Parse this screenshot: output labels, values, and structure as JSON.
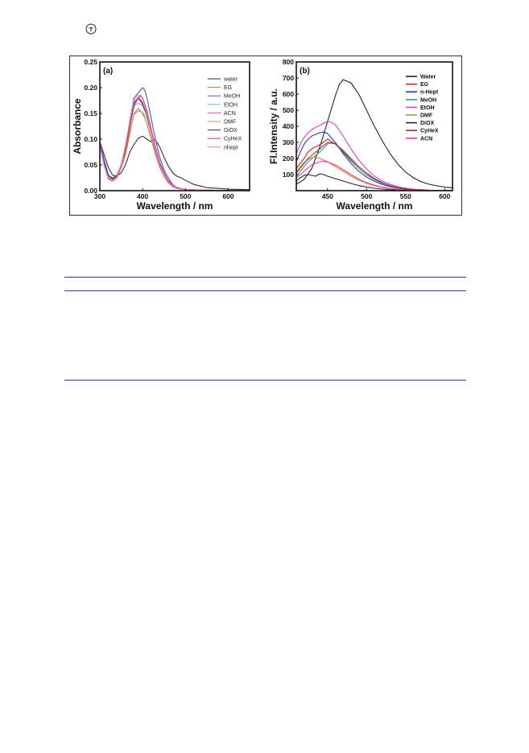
{
  "logo": "elsevier-tree-logo",
  "colors": {
    "rule": "#2b3b8f"
  },
  "chart_data": [
    {
      "type": "line",
      "panel_label": "(a)",
      "xlabel": "Wavelength / nm",
      "ylabel": "Absorbance",
      "xlim": [
        300,
        650
      ],
      "ylim": [
        0,
        0.25
      ],
      "xticks": [
        "300",
        "400",
        "500",
        "600"
      ],
      "yticks": [
        "0.00",
        "0.05",
        "0.10",
        "0.15",
        "0.20",
        "0.25"
      ],
      "legend_position": "top-right",
      "series": [
        {
          "name": "water",
          "color": "#333333",
          "x": [
            300,
            310,
            320,
            330,
            340,
            350,
            360,
            370,
            380,
            390,
            400,
            410,
            420,
            425,
            430,
            440,
            450,
            460,
            470,
            480,
            490,
            500,
            520,
            550,
            600,
            650
          ],
          "y": [
            0.095,
            0.07,
            0.045,
            0.03,
            0.028,
            0.035,
            0.05,
            0.075,
            0.09,
            0.102,
            0.106,
            0.1,
            0.095,
            0.1,
            0.098,
            0.085,
            0.065,
            0.048,
            0.035,
            0.028,
            0.025,
            0.02,
            0.012,
            0.006,
            0.003,
            0.002
          ]
        },
        {
          "name": "EG",
          "color": "#d07070",
          "x": [
            300,
            310,
            320,
            330,
            340,
            350,
            360,
            370,
            380,
            390,
            395,
            400,
            410,
            420,
            430,
            440,
            450,
            460,
            470,
            480,
            500,
            550,
            650
          ],
          "y": [
            0.09,
            0.05,
            0.025,
            0.02,
            0.028,
            0.045,
            0.07,
            0.11,
            0.15,
            0.16,
            0.155,
            0.15,
            0.13,
            0.1,
            0.07,
            0.045,
            0.028,
            0.015,
            0.008,
            0.004,
            0.002,
            0.001,
            0.0
          ]
        },
        {
          "name": "MeOH",
          "color": "#3a5bd9",
          "x": [
            300,
            310,
            320,
            330,
            340,
            350,
            360,
            370,
            380,
            390,
            400,
            405,
            410,
            420,
            430,
            440,
            450,
            460,
            470,
            480,
            500,
            550,
            650
          ],
          "y": [
            0.095,
            0.06,
            0.03,
            0.022,
            0.028,
            0.05,
            0.085,
            0.135,
            0.18,
            0.19,
            0.2,
            0.195,
            0.18,
            0.14,
            0.1,
            0.065,
            0.04,
            0.025,
            0.012,
            0.005,
            0.002,
            0.001,
            0.0
          ]
        },
        {
          "name": "EtOH",
          "color": "#5fb8c8",
          "x": [
            300,
            310,
            320,
            330,
            340,
            350,
            360,
            370,
            380,
            390,
            400,
            410,
            420,
            430,
            440,
            450,
            460,
            470,
            480,
            500,
            550,
            650
          ],
          "y": [
            0.09,
            0.055,
            0.028,
            0.02,
            0.026,
            0.045,
            0.08,
            0.125,
            0.165,
            0.17,
            0.165,
            0.145,
            0.11,
            0.075,
            0.048,
            0.03,
            0.018,
            0.01,
            0.005,
            0.002,
            0.001,
            0.0
          ]
        },
        {
          "name": "ACN",
          "color": "#e040c0",
          "x": [
            300,
            310,
            320,
            330,
            340,
            350,
            360,
            370,
            380,
            390,
            400,
            410,
            420,
            430,
            440,
            450,
            460,
            470,
            480,
            500,
            550,
            650
          ],
          "y": [
            0.088,
            0.05,
            0.025,
            0.02,
            0.027,
            0.05,
            0.085,
            0.13,
            0.17,
            0.18,
            0.17,
            0.15,
            0.115,
            0.08,
            0.05,
            0.032,
            0.018,
            0.01,
            0.005,
            0.002,
            0.001,
            0.0
          ]
        },
        {
          "name": "DMF",
          "color": "#b0a050",
          "x": [
            300,
            310,
            320,
            330,
            340,
            350,
            360,
            370,
            380,
            390,
            400,
            410,
            420,
            430,
            440,
            450,
            460,
            470,
            480,
            500,
            550,
            650
          ],
          "y": [
            0.09,
            0.05,
            0.022,
            0.018,
            0.025,
            0.045,
            0.075,
            0.115,
            0.148,
            0.155,
            0.152,
            0.14,
            0.11,
            0.075,
            0.048,
            0.03,
            0.018,
            0.01,
            0.005,
            0.002,
            0.001,
            0.0
          ]
        },
        {
          "name": "DiOX",
          "color": "#2a2a60",
          "x": [
            300,
            310,
            320,
            330,
            340,
            350,
            360,
            370,
            380,
            390,
            400,
            410,
            420,
            430,
            440,
            450,
            460,
            470,
            480,
            500,
            550,
            650
          ],
          "y": [
            0.09,
            0.055,
            0.03,
            0.024,
            0.03,
            0.05,
            0.085,
            0.13,
            0.17,
            0.18,
            0.168,
            0.148,
            0.115,
            0.08,
            0.052,
            0.033,
            0.02,
            0.011,
            0.006,
            0.002,
            0.001,
            0.0
          ]
        },
        {
          "name": "CyHeX",
          "color": "#c04040",
          "x": [
            300,
            310,
            320,
            330,
            340,
            350,
            360,
            370,
            380,
            390,
            395,
            400,
            410,
            420,
            430,
            440,
            450,
            460,
            470,
            480,
            500,
            550,
            650
          ],
          "y": [
            0.09,
            0.05,
            0.024,
            0.02,
            0.027,
            0.048,
            0.08,
            0.125,
            0.165,
            0.18,
            0.185,
            0.18,
            0.155,
            0.12,
            0.085,
            0.055,
            0.035,
            0.02,
            0.011,
            0.005,
            0.002,
            0.001,
            0.0
          ]
        },
        {
          "name": "nhept",
          "color": "#ff70c0",
          "x": [
            300,
            310,
            320,
            330,
            340,
            350,
            360,
            370,
            380,
            390,
            400,
            410,
            420,
            430,
            440,
            450,
            460,
            470,
            480,
            500,
            550,
            650
          ],
          "y": [
            0.088,
            0.05,
            0.025,
            0.02,
            0.028,
            0.05,
            0.088,
            0.135,
            0.175,
            0.185,
            0.172,
            0.15,
            0.115,
            0.08,
            0.05,
            0.032,
            0.018,
            0.01,
            0.005,
            0.002,
            0.001,
            0.0
          ]
        }
      ]
    },
    {
      "type": "line",
      "panel_label": "(b)",
      "xlabel": "Wavelength / nm",
      "ylabel": "Fl.Intensity / a.u.",
      "xlim": [
        410,
        610
      ],
      "ylim": [
        0,
        800
      ],
      "xticks": [
        "450",
        "500",
        "550",
        "600"
      ],
      "yticks": [
        "100",
        "200",
        "300",
        "400",
        "500",
        "600",
        "700",
        "800"
      ],
      "legend_position": "top-right",
      "series": [
        {
          "name": "Water",
          "color": "#222222",
          "x": [
            410,
            420,
            430,
            440,
            450,
            460,
            465,
            470,
            480,
            490,
            500,
            510,
            520,
            530,
            540,
            550,
            560,
            570,
            580,
            590,
            600,
            610
          ],
          "y": [
            40,
            70,
            140,
            270,
            430,
            590,
            660,
            690,
            670,
            600,
            500,
            400,
            310,
            230,
            165,
            115,
            80,
            55,
            40,
            30,
            22,
            18
          ]
        },
        {
          "name": "EG",
          "color": "#cc2222",
          "x": [
            410,
            415,
            420,
            425,
            430,
            440,
            450,
            460,
            470,
            480,
            490,
            500,
            510,
            520,
            530,
            540,
            550,
            560,
            580,
            610
          ],
          "y": [
            140,
            170,
            200,
            240,
            260,
            285,
            320,
            290,
            240,
            185,
            140,
            100,
            70,
            48,
            32,
            20,
            12,
            8,
            3,
            1
          ]
        },
        {
          "name": "n-Hept",
          "color": "#2a3fb0",
          "x": [
            410,
            415,
            420,
            425,
            430,
            440,
            445,
            450,
            460,
            470,
            480,
            490,
            500,
            510,
            520,
            530,
            540,
            550,
            560,
            580,
            610
          ],
          "y": [
            180,
            240,
            290,
            320,
            340,
            360,
            365,
            355,
            300,
            230,
            170,
            120,
            85,
            58,
            38,
            25,
            15,
            9,
            5,
            2,
            1
          ]
        },
        {
          "name": "MeOH",
          "color": "#2a9a9a",
          "x": [
            410,
            415,
            420,
            425,
            430,
            440,
            450,
            455,
            460,
            470,
            480,
            490,
            500,
            510,
            520,
            530,
            540,
            550,
            560,
            580,
            610
          ],
          "y": [
            90,
            120,
            150,
            180,
            200,
            240,
            290,
            300,
            290,
            245,
            190,
            140,
            100,
            68,
            45,
            30,
            18,
            11,
            6,
            2,
            1
          ]
        },
        {
          "name": "EtOH",
          "color": "#d040e0",
          "x": [
            410,
            415,
            420,
            425,
            430,
            435,
            440,
            445,
            450,
            455,
            460,
            470,
            480,
            490,
            500,
            510,
            520,
            530,
            540,
            550,
            560,
            580,
            610
          ],
          "y": [
            230,
            290,
            330,
            360,
            380,
            395,
            405,
            420,
            430,
            425,
            410,
            340,
            260,
            190,
            135,
            90,
            60,
            40,
            25,
            15,
            9,
            3,
            1
          ]
        },
        {
          "name": "DMF",
          "color": "#b89a40",
          "x": [
            410,
            415,
            420,
            425,
            430,
            435,
            440,
            450,
            460,
            470,
            480,
            490,
            500,
            510,
            520,
            530,
            540,
            550,
            560,
            580,
            610
          ],
          "y": [
            120,
            150,
            175,
            195,
            205,
            210,
            200,
            180,
            150,
            120,
            90,
            65,
            45,
            30,
            20,
            12,
            8,
            5,
            3,
            1,
            0
          ]
        },
        {
          "name": "DiOX",
          "color": "#20205a",
          "x": [
            410,
            415,
            420,
            425,
            430,
            435,
            440,
            445,
            450,
            460,
            470,
            480,
            490,
            500,
            510,
            520,
            530,
            540,
            550,
            560,
            580,
            610
          ],
          "y": [
            60,
            80,
            95,
            100,
            95,
            90,
            105,
            100,
            90,
            75,
            60,
            45,
            32,
            22,
            15,
            10,
            6,
            4,
            3,
            2,
            1,
            0
          ]
        },
        {
          "name": "CyHeX",
          "color": "#a03020",
          "x": [
            410,
            415,
            420,
            425,
            430,
            440,
            450,
            460,
            470,
            480,
            490,
            500,
            510,
            520,
            530,
            540,
            550,
            560,
            580,
            610
          ],
          "y": [
            110,
            140,
            170,
            200,
            220,
            260,
            300,
            290,
            250,
            200,
            150,
            110,
            75,
            50,
            32,
            20,
            12,
            7,
            3,
            1
          ]
        },
        {
          "name": "ACN",
          "color": "#ff3090",
          "x": [
            410,
            415,
            420,
            425,
            430,
            435,
            440,
            445,
            450,
            460,
            470,
            480,
            490,
            500,
            510,
            520,
            530,
            540,
            550,
            560,
            580,
            610
          ],
          "y": [
            80,
            100,
            120,
            140,
            160,
            170,
            180,
            182,
            178,
            160,
            130,
            100,
            72,
            50,
            34,
            22,
            14,
            8,
            5,
            3,
            1,
            0
          ]
        }
      ]
    }
  ]
}
